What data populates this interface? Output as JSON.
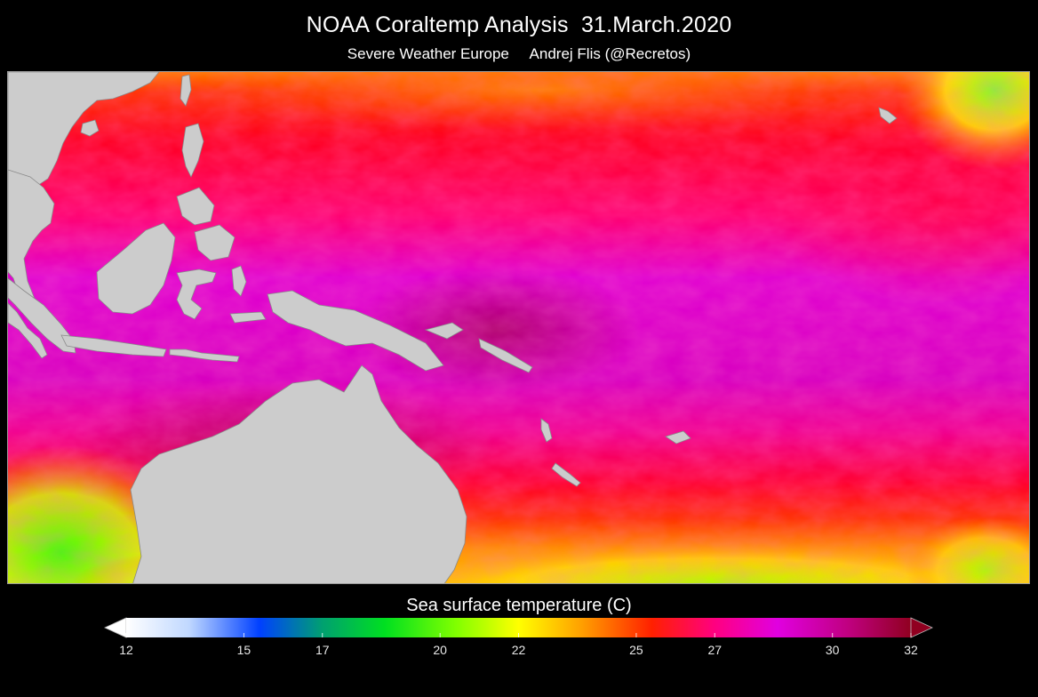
{
  "title": "NOAA Coraltemp Analysis  31.March.2020",
  "subtitle": "Severe Weather Europe     Andrej Flis (@Recretos)",
  "legend": {
    "title": "Sea surface temperature (C)",
    "ticks": [
      12,
      15,
      17,
      20,
      22,
      25,
      27,
      30,
      32
    ],
    "colors": {
      "12": "#ffffff",
      "15": "#0050ff",
      "17": "#00b040",
      "20": "#20ff00",
      "22": "#ffff00",
      "25": "#ff8000",
      "27": "#ff0000",
      "30": "#e000e0",
      "32": "#900020"
    }
  },
  "map": {
    "land_color": "#cccccc",
    "border_color": "#9a9a9a"
  }
}
